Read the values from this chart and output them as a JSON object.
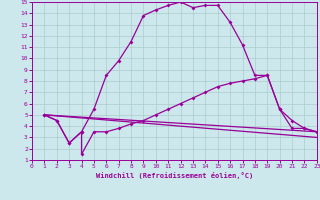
{
  "xlabel": "Windchill (Refroidissement éolien,°C)",
  "xlim": [
    0,
    23
  ],
  "ylim": [
    1,
    15
  ],
  "xticks": [
    0,
    1,
    2,
    3,
    4,
    5,
    6,
    7,
    8,
    9,
    10,
    11,
    12,
    13,
    14,
    15,
    16,
    17,
    18,
    19,
    20,
    21,
    22,
    23
  ],
  "yticks": [
    1,
    2,
    3,
    4,
    5,
    6,
    7,
    8,
    9,
    10,
    11,
    12,
    13,
    14,
    15
  ],
  "bg_color": "#cce8ec",
  "line_color": "#990099",
  "grid_color": "#aacccc",
  "line1_x": [
    1,
    2,
    3,
    4,
    5,
    6,
    7,
    8,
    9,
    10,
    11,
    12,
    13,
    14,
    15,
    16,
    17,
    18,
    19,
    20,
    21,
    22,
    23
  ],
  "line1_y": [
    5.0,
    4.5,
    2.5,
    3.5,
    5.5,
    8.5,
    9.8,
    11.5,
    13.8,
    14.3,
    14.7,
    15.0,
    14.5,
    14.7,
    14.7,
    13.2,
    11.2,
    8.5,
    8.5,
    5.5,
    4.5,
    3.8,
    3.5
  ],
  "line2_x": [
    1,
    2,
    3,
    4,
    4,
    5,
    6,
    7,
    8,
    9,
    10,
    11,
    12,
    13,
    14,
    15,
    16,
    17,
    18,
    19,
    20,
    21,
    22,
    23
  ],
  "line2_y": [
    5.0,
    4.5,
    2.5,
    3.5,
    1.5,
    3.5,
    3.5,
    3.8,
    4.2,
    4.5,
    5.0,
    5.5,
    6.0,
    6.5,
    7.0,
    7.5,
    7.8,
    8.0,
    8.2,
    8.5,
    5.5,
    3.8,
    3.8,
    3.5
  ],
  "line3_x": [
    1,
    23
  ],
  "line3_y": [
    5.0,
    3.5
  ],
  "line4_x": [
    1,
    23
  ],
  "line4_y": [
    5.0,
    3.0
  ]
}
